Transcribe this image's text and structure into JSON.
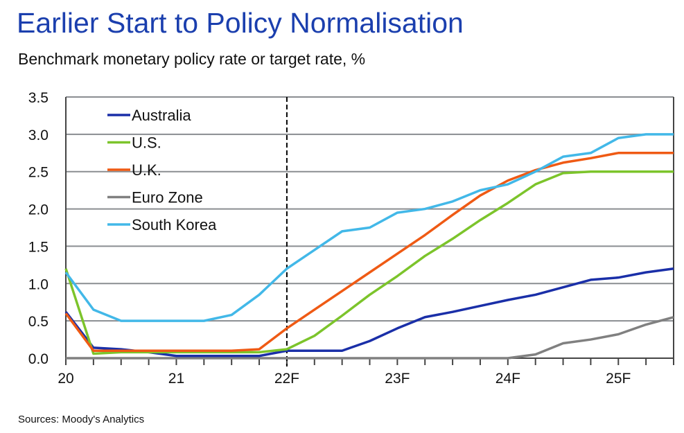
{
  "chart_data": {
    "type": "line",
    "title": "Earlier Start to Policy Normalisation",
    "subtitle": "Benchmark monetary policy rate or target rate, %",
    "source": "Sources: Moody's Analytics",
    "x_start": 2020,
    "x_step": 0.25,
    "xlim": [
      2020,
      2025.5
    ],
    "ylim": [
      0,
      3.5
    ],
    "yticks": [
      0,
      0.5,
      1,
      1.5,
      2,
      2.5,
      3,
      3.5
    ],
    "ytick_labels": [
      "0.0",
      "0.5",
      "1.0",
      "1.5",
      "2.0",
      "2.5",
      "3.0",
      "3.5"
    ],
    "xticks": [
      2020,
      2021,
      2022,
      2023,
      2024,
      2025
    ],
    "xtick_labels": [
      "20",
      "21",
      "22F",
      "23F",
      "24F",
      "25F"
    ],
    "forecast_start": 2022,
    "grid": true,
    "legend_position": "top-left",
    "series": [
      {
        "name": "Australia",
        "color": "#1a2fa8",
        "values": [
          0.62,
          0.14,
          0.12,
          0.08,
          0.03,
          0.03,
          0.03,
          0.03,
          0.1,
          0.1,
          0.1,
          0.23,
          0.4,
          0.55,
          0.62,
          0.7,
          0.78,
          0.85,
          0.95,
          1.05,
          1.08,
          1.15,
          1.2
        ]
      },
      {
        "name": "U.S.",
        "color": "#7cc42b",
        "values": [
          1.2,
          0.06,
          0.08,
          0.08,
          0.08,
          0.08,
          0.08,
          0.08,
          0.12,
          0.3,
          0.57,
          0.85,
          1.1,
          1.37,
          1.6,
          1.85,
          2.08,
          2.33,
          2.48,
          2.5,
          2.5,
          2.5,
          2.5
        ]
      },
      {
        "name": "U.K.",
        "color": "#ef5a14",
        "values": [
          0.6,
          0.1,
          0.1,
          0.1,
          0.1,
          0.1,
          0.1,
          0.12,
          0.4,
          0.65,
          0.9,
          1.15,
          1.4,
          1.65,
          1.92,
          2.18,
          2.38,
          2.52,
          2.62,
          2.68,
          2.75,
          2.75,
          2.75
        ]
      },
      {
        "name": "Euro Zone",
        "color": "#808080",
        "values": [
          0,
          0,
          0,
          0,
          0,
          0,
          0,
          0,
          0,
          0,
          0,
          0,
          0,
          0,
          0,
          0,
          0,
          0.05,
          0.2,
          0.25,
          0.32,
          0.45,
          0.55
        ]
      },
      {
        "name": "South Korea",
        "color": "#42b8e8",
        "values": [
          1.15,
          0.65,
          0.5,
          0.5,
          0.5,
          0.5,
          0.58,
          0.85,
          1.2,
          1.45,
          1.7,
          1.75,
          1.95,
          2.0,
          2.1,
          2.25,
          2.33,
          2.5,
          2.7,
          2.75,
          2.95,
          3.0,
          3.0
        ]
      }
    ]
  }
}
